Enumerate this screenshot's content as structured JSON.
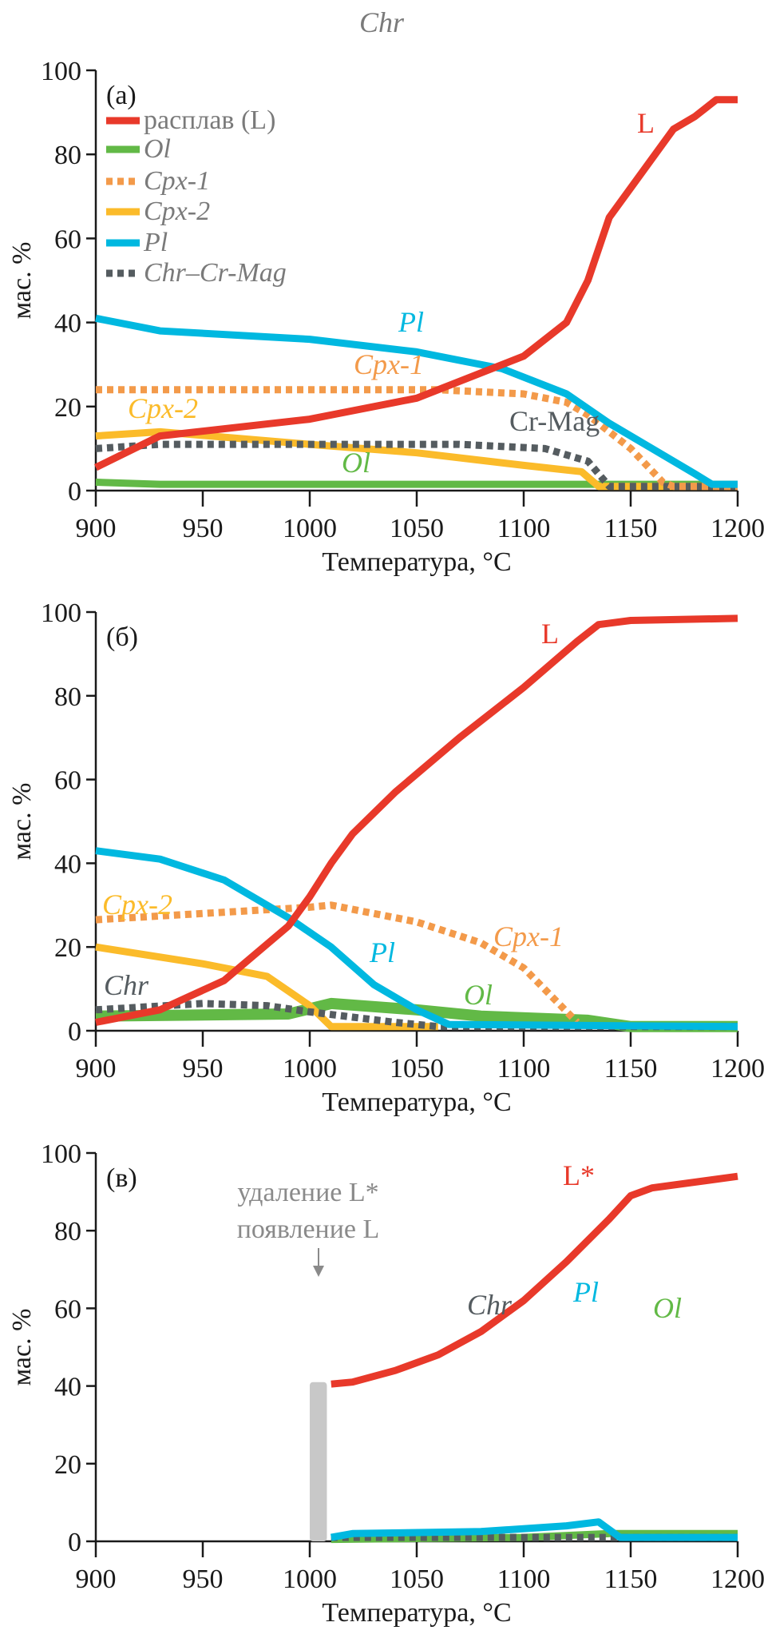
{
  "title": "Chr",
  "colors": {
    "L": "#e8392a",
    "Ol": "#62b946",
    "Cpx1": "#f39a4a",
    "Cpx2": "#fbbb2a",
    "Pl": "#00b8e0",
    "Chr": "#555c60",
    "annotation": "#c8c8c8"
  },
  "chart_data": [
    {
      "type": "line",
      "panel_label": "(a)",
      "xlabel": "Температура, °C",
      "ylabel": "мас. %",
      "xlim": [
        900,
        1200
      ],
      "ylim": [
        0,
        100
      ],
      "xticks": [
        900,
        950,
        1000,
        1050,
        1100,
        1150,
        1200
      ],
      "yticks": [
        0,
        20,
        40,
        60,
        80,
        100
      ],
      "legend": {
        "placement": "top-left",
        "entries": [
          {
            "key": "L",
            "label": "расплав (L)",
            "style": "solid"
          },
          {
            "key": "Ol",
            "label": "Ol",
            "style": "solid"
          },
          {
            "key": "Cpx1",
            "label": "Cpx-1",
            "style": "dotted"
          },
          {
            "key": "Cpx2",
            "label": "Cpx-2",
            "style": "solid"
          },
          {
            "key": "Pl",
            "label": "Pl",
            "style": "solid"
          },
          {
            "key": "Chr",
            "label": "Chr–Cr-Mag",
            "style": "dotted"
          }
        ]
      },
      "series": [
        {
          "key": "Ol",
          "style": "solid",
          "x": [
            900,
            930,
            1200
          ],
          "y": [
            2,
            1.5,
            1.5
          ]
        },
        {
          "key": "Cpx2",
          "style": "solid",
          "x": [
            900,
            930,
            1000,
            1050,
            1100,
            1127,
            1135,
            1200
          ],
          "y": [
            13,
            14,
            11,
            9,
            6,
            4.5,
            1,
            1
          ]
        },
        {
          "key": "Chr",
          "style": "dotted",
          "x": [
            900,
            930,
            1000,
            1070,
            1110,
            1130,
            1140,
            1200
          ],
          "y": [
            10,
            11,
            11,
            11,
            10,
            7,
            1,
            1
          ]
        },
        {
          "key": "Cpx1",
          "style": "dotted",
          "x": [
            900,
            1000,
            1060,
            1100,
            1120,
            1130,
            1150,
            1165,
            1170,
            1200
          ],
          "y": [
            24,
            24,
            24,
            23,
            21,
            18,
            10,
            2,
            1,
            1
          ]
        },
        {
          "key": "Pl",
          "style": "solid",
          "x": [
            900,
            930,
            1000,
            1050,
            1090,
            1120,
            1140,
            1160,
            1180,
            1188,
            1200
          ],
          "y": [
            41,
            38,
            36,
            33,
            29,
            23,
            16,
            10,
            4,
            1.5,
            1.5
          ]
        },
        {
          "key": "L",
          "style": "solid",
          "x": [
            900,
            930,
            1000,
            1050,
            1100,
            1120,
            1130,
            1140,
            1150,
            1170,
            1180,
            1190,
            1200
          ],
          "y": [
            5.5,
            13,
            17,
            22,
            32,
            40,
            50,
            65,
            72,
            86,
            89,
            93,
            93
          ]
        }
      ],
      "annotations": [
        {
          "text": "L",
          "key": "L"
        },
        {
          "text": "Pl",
          "key": "Pl"
        },
        {
          "text": "Cpx-1",
          "key": "Cpx1"
        },
        {
          "text": "Cpx-2",
          "key": "Cpx2"
        },
        {
          "text": "Cr-Mag",
          "key": "Chr"
        },
        {
          "text": "Ol",
          "key": "Ol"
        }
      ]
    },
    {
      "type": "line",
      "panel_label": "(б)",
      "xlabel": "Температура, °C",
      "ylabel": "мас. %",
      "xlim": [
        900,
        1200
      ],
      "ylim": [
        0,
        100
      ],
      "xticks": [
        900,
        950,
        1000,
        1050,
        1100,
        1150,
        1200
      ],
      "yticks": [
        0,
        20,
        40,
        60,
        80,
        100
      ],
      "series": [
        {
          "key": "Ol",
          "style": "band",
          "x": [
            900,
            990,
            1010,
            1050,
            1080,
            1130,
            1150,
            1200
          ],
          "y": [
            3.5,
            4,
            6.5,
            5,
            3.5,
            2.5,
            1,
            1
          ]
        },
        {
          "key": "Cpx2",
          "style": "solid",
          "x": [
            900,
            950,
            980,
            1000,
            1010,
            1060
          ],
          "y": [
            20,
            16,
            13,
            6,
            1,
            1
          ]
        },
        {
          "key": "Chr",
          "style": "dotted",
          "x": [
            900,
            950,
            980,
            1000,
            1040,
            1060,
            1200
          ],
          "y": [
            5,
            6.5,
            6,
            4.5,
            2,
            1,
            1
          ]
        },
        {
          "key": "Cpx1",
          "style": "dotted",
          "x": [
            900,
            1000,
            1010,
            1050,
            1080,
            1100,
            1125
          ],
          "y": [
            26.5,
            29.5,
            30,
            26,
            21,
            15,
            2
          ]
        },
        {
          "key": "Pl",
          "style": "solid",
          "x": [
            900,
            930,
            960,
            990,
            1010,
            1030,
            1050,
            1065,
            1200
          ],
          "y": [
            43,
            41,
            36,
            27,
            20,
            11,
            5,
            1.5,
            1
          ]
        },
        {
          "key": "L",
          "style": "solid",
          "x": [
            900,
            930,
            960,
            990,
            1000,
            1010,
            1020,
            1040,
            1070,
            1100,
            1125,
            1135,
            1150,
            1200
          ],
          "y": [
            2,
            5,
            12,
            25,
            32,
            40,
            47,
            57,
            70,
            82,
            93,
            97,
            98,
            98.5
          ]
        }
      ],
      "annotations": [
        {
          "text": "L",
          "key": "L"
        },
        {
          "text": "Cpx-2",
          "key": "Cpx2"
        },
        {
          "text": "Pl",
          "key": "Pl"
        },
        {
          "text": "Cpx-1",
          "key": "Cpx1"
        },
        {
          "text": "Chr",
          "key": "Chr"
        },
        {
          "text": "Ol",
          "key": "Ol"
        }
      ]
    },
    {
      "type": "line",
      "panel_label": "(в)",
      "xlabel": "Температура, °C",
      "ylabel": "мас. %",
      "xlim": [
        900,
        1200
      ],
      "ylim": [
        0,
        100
      ],
      "xticks": [
        900,
        950,
        1000,
        1050,
        1100,
        1150,
        1200
      ],
      "yticks": [
        0,
        20,
        40,
        60,
        80,
        100
      ],
      "series": [
        {
          "key": "Ol",
          "style": "solid",
          "x": [
            1010,
            1100,
            1140,
            1200
          ],
          "y": [
            0.5,
            1,
            2,
            2
          ]
        },
        {
          "key": "Chr",
          "style": "dotted",
          "x": [
            1010,
            1200
          ],
          "y": [
            1,
            1
          ]
        },
        {
          "key": "Pl",
          "style": "solid",
          "x": [
            1010,
            1020,
            1080,
            1120,
            1135,
            1145,
            1200
          ],
          "y": [
            1,
            2,
            2.5,
            4,
            5,
            1,
            1
          ]
        },
        {
          "key": "L",
          "style": "solid",
          "x": [
            1010,
            1020,
            1040,
            1060,
            1080,
            1100,
            1120,
            1140,
            1150,
            1160,
            1200
          ],
          "y": [
            40.5,
            41,
            44,
            48,
            54,
            62,
            72,
            83,
            89,
            91,
            94
          ]
        }
      ],
      "bar": {
        "x": [
          1000,
          1008
        ],
        "y": [
          0,
          41
        ]
      },
      "annotations": [
        {
          "text": "L*",
          "key": "L"
        },
        {
          "text": "Chr",
          "key": "Chr"
        },
        {
          "text": "Pl",
          "key": "Pl"
        },
        {
          "text": "Ol",
          "key": "Ol"
        }
      ],
      "note": [
        "удаление L*",
        "появление L"
      ]
    }
  ]
}
